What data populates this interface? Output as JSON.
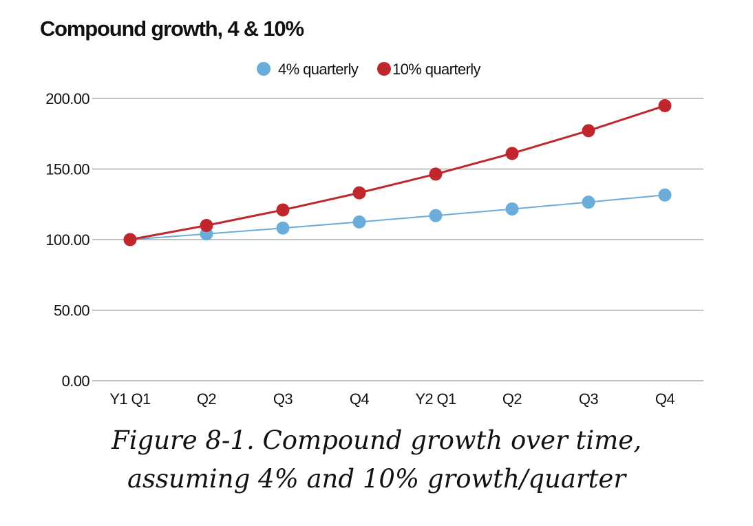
{
  "chart_data": {
    "type": "line",
    "title": "Compound growth, 4 & 10%",
    "categories": [
      "Y1 Q1",
      "Q2",
      "Q3",
      "Q4",
      "Y2 Q1",
      "Q2",
      "Q3",
      "Q4"
    ],
    "series": [
      {
        "name": "4% quarterly",
        "color": "#6aaddb",
        "values": [
          100.0,
          104.0,
          108.16,
          112.49,
          116.99,
          121.67,
          126.53,
          131.59
        ]
      },
      {
        "name": "10% quarterly",
        "color": "#c0272d",
        "values": [
          100.0,
          110.0,
          121.0,
          133.1,
          146.41,
          161.05,
          177.16,
          194.87
        ]
      }
    ],
    "ylim": [
      0,
      200
    ],
    "yticks": [
      "0.00",
      "50.00",
      "100.00",
      "150.00",
      "200.00"
    ],
    "ytick_values": [
      0,
      50,
      100,
      150,
      200
    ],
    "xlabel": "",
    "ylabel": "",
    "grid": true,
    "legend_position": "top-center"
  },
  "caption": {
    "line1": "Figure 8-1. Compound growth over time,",
    "line2": "assuming 4% and 10% growth/quarter"
  }
}
